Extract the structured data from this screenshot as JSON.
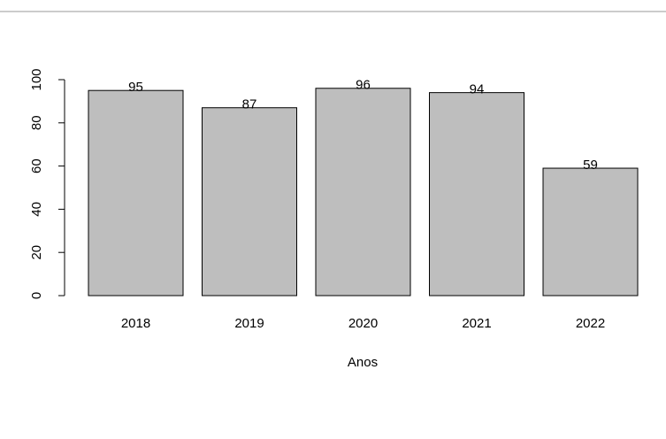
{
  "chart_data": {
    "type": "bar",
    "x_label": "Anos",
    "categories": [
      "2018",
      "2019",
      "2020",
      "2021",
      "2022"
    ],
    "values": [
      95,
      87,
      96,
      94,
      59
    ],
    "color": "#bebebe",
    "ylim": [
      0,
      100
    ],
    "yticks": [
      0,
      20,
      40,
      60,
      80,
      100
    ]
  }
}
